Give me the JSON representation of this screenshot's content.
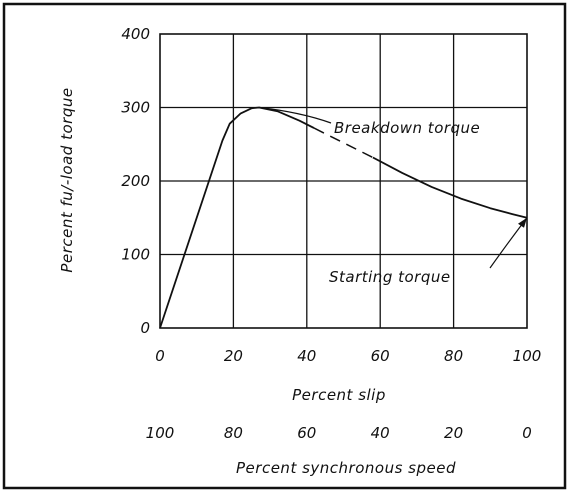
{
  "chart_data": {
    "type": "line",
    "title": "",
    "xlabel": "Percent slip",
    "ylabel": "Percent fu/-load torque",
    "secondary_xlabel": "Percent synchronous speed",
    "xlim": [
      0,
      100
    ],
    "ylim": [
      0,
      400
    ],
    "x_ticks": [
      "0",
      "20",
      "40",
      "60",
      "80",
      "100"
    ],
    "y_ticks": [
      "0",
      "100",
      "200",
      "300",
      "400"
    ],
    "secondary_x_ticks": [
      "100",
      "80",
      "60",
      "40",
      "20",
      "0"
    ],
    "grid": true,
    "series": [
      {
        "style": "solid",
        "points": [
          [
            0,
            0
          ],
          [
            17,
            255
          ],
          [
            19,
            278
          ],
          [
            22,
            292
          ],
          [
            25,
            299
          ],
          [
            27,
            300
          ],
          [
            32,
            295
          ],
          [
            38,
            282
          ],
          [
            42,
            272
          ]
        ]
      },
      {
        "style": "dashed",
        "points": [
          [
            42,
            272
          ],
          [
            50,
            252
          ],
          [
            58,
            232
          ]
        ]
      },
      {
        "style": "solid",
        "points": [
          [
            58,
            232
          ],
          [
            66,
            211
          ],
          [
            74,
            192
          ],
          [
            82,
            176
          ],
          [
            90,
            163
          ],
          [
            96,
            155
          ],
          [
            100,
            150
          ]
        ]
      }
    ],
    "annotations": [
      {
        "text": "Breakdown torque",
        "x": 27,
        "y": 300
      },
      {
        "text": "Starting torque",
        "x": 100,
        "y": 150
      }
    ]
  }
}
